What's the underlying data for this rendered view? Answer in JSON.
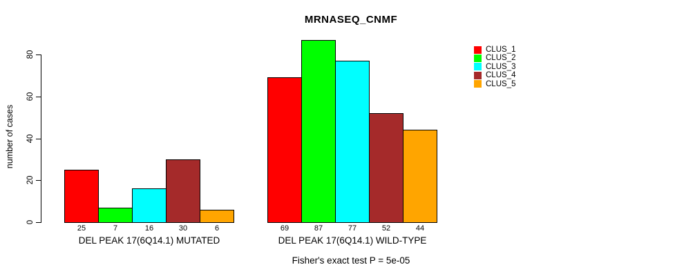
{
  "chart_data": {
    "type": "bar",
    "title": "MRNASEQ_CNMF",
    "ylabel": "number of cases",
    "xlabel": "",
    "yticks": [
      0,
      20,
      40,
      60,
      80
    ],
    "ylim": [
      0,
      88
    ],
    "grid": false,
    "legend_position": "right",
    "legend": [
      {
        "label": "CLUS_1",
        "color": "#FF0000"
      },
      {
        "label": "CLUS_2",
        "color": "#00FF00"
      },
      {
        "label": "CLUS_3",
        "color": "#00FFFF"
      },
      {
        "label": "CLUS_4",
        "color": "#A52A2A"
      },
      {
        "label": "CLUS_5",
        "color": "#FFA500"
      }
    ],
    "groups": [
      {
        "label": "DEL PEAK 17(6Q14.1) MUTATED",
        "values": [
          25,
          7,
          16,
          30,
          6
        ]
      },
      {
        "label": "DEL PEAK 17(6Q14.1) WILD-TYPE",
        "values": [
          69,
          87,
          77,
          52,
          44
        ]
      }
    ],
    "annotation": "Fisher's exact test P = 5e-05"
  }
}
